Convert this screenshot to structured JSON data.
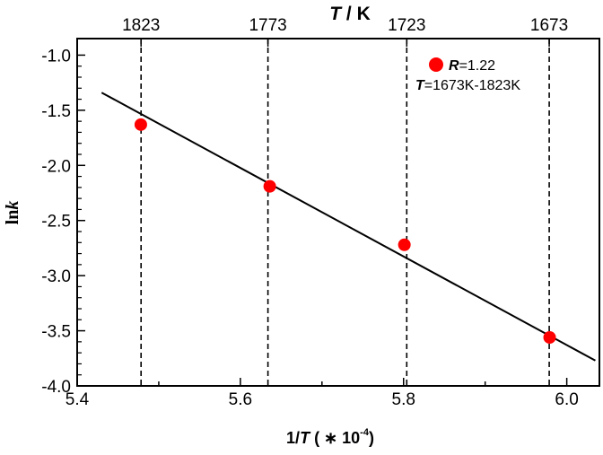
{
  "chart_data": {
    "type": "scatter",
    "xlabel_prefix": "1/",
    "xlabel_var": "T",
    "xlabel_suffix": " ( ∗ 10",
    "xlabel_exp": "-4",
    "xlabel_close": ")",
    "ylabel_main": "ln",
    "ylabel_var": "k",
    "top_xlabel_var": "T",
    "top_xlabel_unit": " / K",
    "xlim": [
      5.4,
      6.04
    ],
    "ylim": [
      -4.0,
      -0.85
    ],
    "x_ticks": [
      5.4,
      5.6,
      5.8,
      6.0
    ],
    "x_tick_labels": [
      "5.4",
      "5.6",
      "5.8",
      "6.0"
    ],
    "y_ticks": [
      -4.0,
      -3.5,
      -3.0,
      -2.5,
      -2.0,
      -1.5,
      -1.0
    ],
    "y_tick_labels": [
      "-4.0",
      "-3.5",
      "-3.0",
      "-2.5",
      "-2.0",
      "-1.5",
      "-1.0"
    ],
    "top_ticks": [
      {
        "x": 5.4783,
        "label": "1823"
      },
      {
        "x": 5.6338,
        "label": "1773"
      },
      {
        "x": 5.8039,
        "label": "1723"
      },
      {
        "x": 5.9785,
        "label": "1673"
      }
    ],
    "points": [
      {
        "x": 5.478,
        "y": -1.63
      },
      {
        "x": 5.636,
        "y": -2.19
      },
      {
        "x": 5.801,
        "y": -2.72
      },
      {
        "x": 5.979,
        "y": -3.56
      }
    ],
    "fit_line": {
      "x": [
        5.43,
        6.035
      ],
      "y": [
        -1.34,
        -3.77
      ]
    },
    "legend": {
      "r_label": "R",
      "r_value": "=1.22",
      "t_label": "T",
      "t_value": "=1673K-1823K"
    },
    "colors": {
      "points": "#ff0000",
      "line": "#000000"
    }
  }
}
